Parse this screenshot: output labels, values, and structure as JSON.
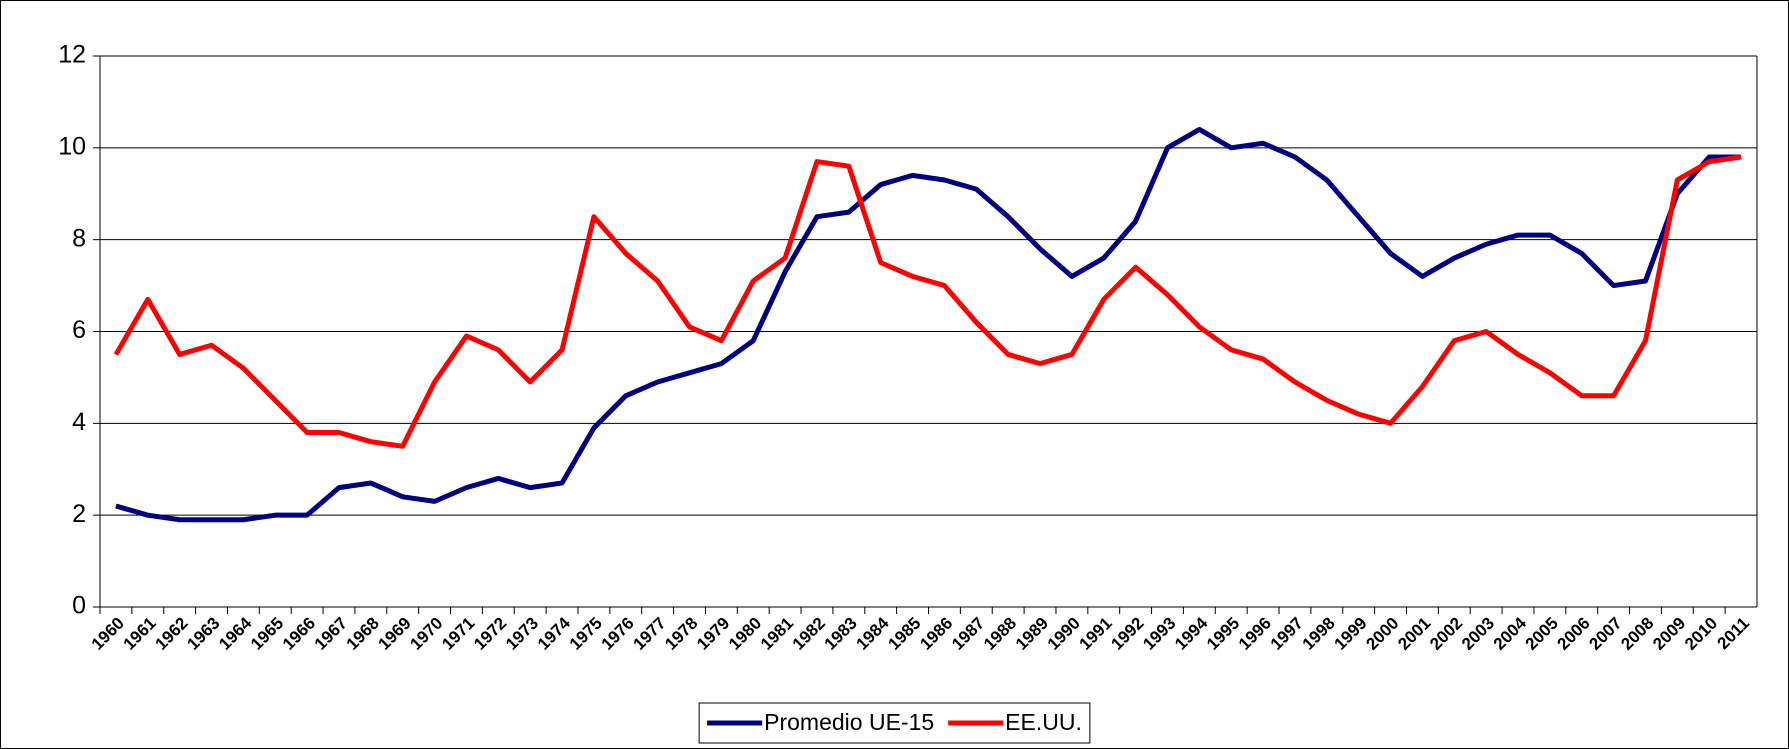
{
  "chart_data": {
    "type": "line",
    "categories": [
      "1960",
      "1961",
      "1962",
      "1963",
      "1964",
      "1965",
      "1966",
      "1967",
      "1968",
      "1969",
      "1970",
      "1971",
      "1972",
      "1973",
      "1974",
      "1975",
      "1976",
      "1977",
      "1978",
      "1979",
      "1980",
      "1981",
      "1982",
      "1983",
      "1984",
      "1985",
      "1986",
      "1987",
      "1988",
      "1989",
      "1990",
      "1991",
      "1992",
      "1993",
      "1994",
      "1995",
      "1996",
      "1997",
      "1998",
      "1999",
      "2000",
      "2001",
      "2002",
      "2003",
      "2004",
      "2005",
      "2006",
      "2007",
      "2008",
      "2009",
      "2010",
      "2011"
    ],
    "series": [
      {
        "name": "Promedio UE-15",
        "color": "#000080",
        "values": [
          2.2,
          2.0,
          1.9,
          1.9,
          1.9,
          2.0,
          2.0,
          2.6,
          2.7,
          2.4,
          2.3,
          2.6,
          2.8,
          2.6,
          2.7,
          3.9,
          4.6,
          4.9,
          5.1,
          5.3,
          5.8,
          7.3,
          8.5,
          8.6,
          9.2,
          9.4,
          9.3,
          9.1,
          8.5,
          7.8,
          7.2,
          7.6,
          8.4,
          10.0,
          10.4,
          10.0,
          10.1,
          9.8,
          9.3,
          8.5,
          7.7,
          7.2,
          7.6,
          7.9,
          8.1,
          8.1,
          7.7,
          7.0,
          7.1,
          9.0,
          9.8,
          9.8
        ]
      },
      {
        "name": "EE.UU.",
        "color": "#ff0000",
        "values": [
          5.5,
          6.7,
          5.5,
          5.7,
          5.2,
          4.5,
          3.8,
          3.8,
          3.6,
          3.5,
          4.9,
          5.9,
          5.6,
          4.9,
          5.6,
          8.5,
          7.7,
          7.1,
          6.1,
          5.8,
          7.1,
          7.6,
          9.7,
          9.6,
          7.5,
          7.2,
          7.0,
          6.2,
          5.5,
          5.3,
          5.5,
          6.7,
          7.4,
          6.8,
          6.1,
          5.6,
          5.4,
          4.9,
          4.5,
          4.2,
          4.0,
          4.8,
          5.8,
          6.0,
          5.5,
          5.1,
          4.6,
          4.6,
          5.8,
          9.3,
          9.7,
          9.8
        ]
      }
    ],
    "ylim": [
      0,
      12
    ],
    "yticks": [
      0,
      2,
      4,
      6,
      8,
      10,
      12
    ],
    "grid": true,
    "legend": "bottom"
  }
}
